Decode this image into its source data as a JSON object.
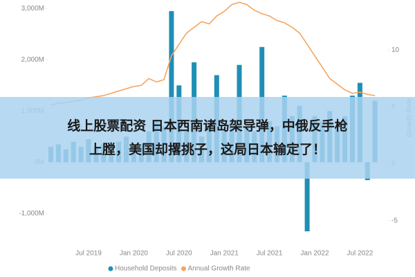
{
  "chart_data": {
    "type": "bar",
    "categories": [
      null,
      null,
      null,
      null,
      null,
      "Jul 2019",
      null,
      null,
      null,
      null,
      null,
      "Jan 2020",
      null,
      null,
      null,
      null,
      null,
      "Jul 2020",
      null,
      null,
      null,
      null,
      null,
      "Jan 2021",
      null,
      null,
      null,
      null,
      null,
      "Jul 2021",
      null,
      null,
      null,
      null,
      null,
      "Jan 2022",
      null,
      null,
      null,
      null,
      null,
      "Jul 2022",
      null,
      null
    ],
    "series": [
      {
        "name": "Household Deposits",
        "type": "bar",
        "color": "#1f8fb5",
        "values": [
          300,
          350,
          250,
          400,
          300,
          450,
          300,
          350,
          250,
          400,
          500,
          300,
          350,
          600,
          800,
          700,
          2950,
          1500,
          600,
          1950,
          500,
          700,
          1700,
          600,
          800,
          1900,
          700,
          600,
          2250,
          800,
          700,
          1300,
          900,
          1100,
          -1350,
          900,
          800,
          1000,
          700,
          900,
          1300,
          1550,
          -350,
          1200
        ]
      },
      {
        "name": "Annual Growth Rate",
        "type": "line",
        "axis": "y2",
        "color": "#f4a460",
        "values": [
          5.2,
          5.3,
          5.4,
          5.5,
          5.6,
          5.8,
          5.9,
          6.0,
          6.2,
          6.4,
          6.6,
          6.8,
          6.9,
          7.5,
          7.2,
          7.4,
          9.5,
          10.5,
          11.5,
          12,
          12.5,
          12.3,
          13,
          13.4,
          14,
          14.2,
          14.0,
          13.5,
          13.2,
          13,
          12.6,
          12.4,
          12,
          11.5,
          10.5,
          9.5,
          8.5,
          7.5,
          7,
          6.5,
          6.2,
          6.3,
          6.1,
          6.0
        ]
      }
    ],
    "ylim": [
      -1430,
      3100
    ],
    "yticks": [
      {
        "value": -1000,
        "label": "-1,000M"
      },
      {
        "value": 0,
        "label": "0M"
      },
      {
        "value": 1000,
        "label": "1,000M"
      },
      {
        "value": 2000,
        "label": "2,000M"
      },
      {
        "value": 3000,
        "label": "3,000M"
      }
    ],
    "y2lim": [
      -6.3,
      14.1
    ],
    "y2ticks": [
      -5,
      0,
      5,
      10
    ],
    "y2label": "Growth Rate",
    "legend": "bottom"
  },
  "banner": {
    "lines": [
      "线上股票配资 日本西南诸岛架导弹，中俄反手枪",
      "上膛，美国却撂挑子，这局日本输定了！"
    ]
  }
}
